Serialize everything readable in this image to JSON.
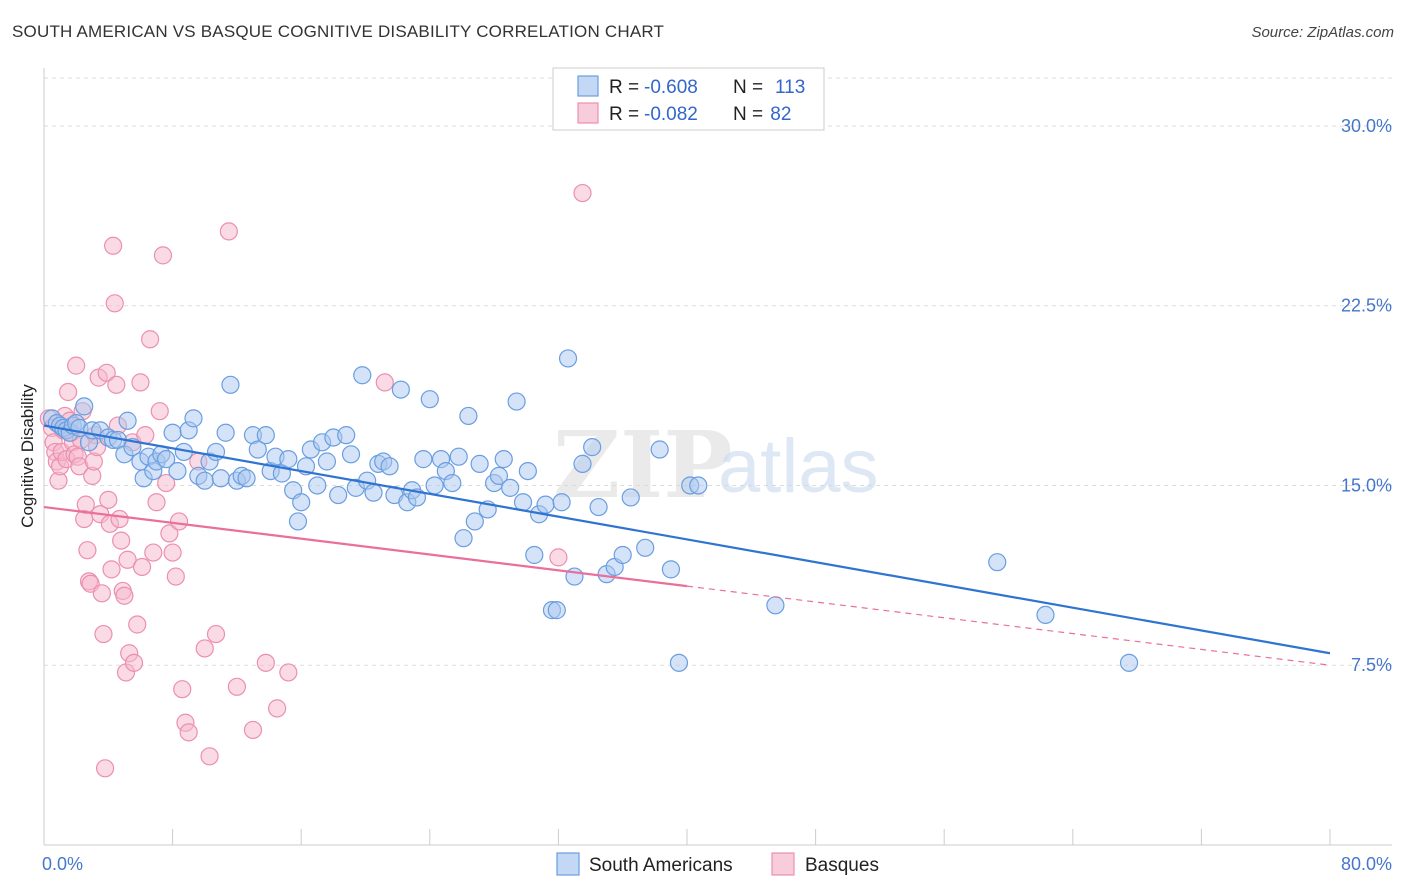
{
  "header": {
    "title": "SOUTH AMERICAN VS BASQUE COGNITIVE DISABILITY CORRELATION CHART",
    "source": "Source: ZipAtlas.com"
  },
  "watermark": {
    "zip": "ZIP",
    "atlas": "atlas"
  },
  "colors": {
    "blue_fill": "#a9c8f0",
    "blue_stroke": "#6a9ee0",
    "blue_line": "#2f74d0",
    "pink_fill": "#f5b8cc",
    "pink_stroke": "#ec8fae",
    "pink_line": "#e8709a",
    "grid": "#dddddd",
    "tick_text": "#4477cc"
  },
  "legend": {
    "rows": [
      {
        "r_label": "R = ",
        "r_value": "-0.608",
        "n_label": "N = ",
        "n_value": "113"
      },
      {
        "r_label": "R = ",
        "r_value": "-0.082",
        "n_label": "N = ",
        "n_value": " 82"
      }
    ],
    "bottom": [
      "South Americans",
      "Basques"
    ]
  },
  "chart_data": {
    "type": "scatter",
    "title": "SOUTH AMERICAN VS BASQUE COGNITIVE DISABILITY CORRELATION CHART",
    "xlabel": "",
    "ylabel": "Cognitive Disability",
    "xlim": [
      0,
      80
    ],
    "ylim": [
      0,
      32
    ],
    "x_tick_labels": [
      "0.0%",
      "80.0%"
    ],
    "y_ticks": [
      7.5,
      15.0,
      22.5,
      30.0
    ],
    "y_tick_labels": [
      "7.5%",
      "15.0%",
      "22.5%",
      "30.0%"
    ],
    "grid": true,
    "legend_position": "top-center",
    "series": [
      {
        "name": "South Americans",
        "r": -0.608,
        "n": 113,
        "trend": {
          "x0": 0,
          "y0": 17.5,
          "x1": 80,
          "y1": 8.0,
          "solid_until": 80
        },
        "points": [
          [
            0.5,
            17.8
          ],
          [
            0.8,
            17.6
          ],
          [
            1.0,
            17.5
          ],
          [
            1.2,
            17.4
          ],
          [
            1.4,
            17.3
          ],
          [
            1.6,
            17.2
          ],
          [
            1.8,
            17.5
          ],
          [
            2.0,
            17.6
          ],
          [
            2.2,
            17.4
          ],
          [
            2.5,
            18.3
          ],
          [
            2.8,
            16.8
          ],
          [
            3.0,
            17.3
          ],
          [
            3.5,
            17.3
          ],
          [
            4.0,
            17.0
          ],
          [
            4.3,
            16.9
          ],
          [
            4.6,
            16.9
          ],
          [
            5.0,
            16.3
          ],
          [
            5.2,
            17.7
          ],
          [
            5.5,
            16.6
          ],
          [
            6.0,
            16.0
          ],
          [
            6.2,
            15.3
          ],
          [
            6.5,
            16.2
          ],
          [
            6.8,
            15.6
          ],
          [
            7.0,
            16.0
          ],
          [
            7.3,
            16.3
          ],
          [
            7.6,
            16.1
          ],
          [
            8.0,
            17.2
          ],
          [
            8.3,
            15.6
          ],
          [
            8.7,
            16.4
          ],
          [
            9.0,
            17.3
          ],
          [
            9.3,
            17.8
          ],
          [
            9.6,
            15.4
          ],
          [
            10.0,
            15.2
          ],
          [
            10.3,
            16.0
          ],
          [
            10.7,
            16.4
          ],
          [
            11.0,
            15.3
          ],
          [
            11.3,
            17.2
          ],
          [
            11.6,
            19.2
          ],
          [
            12.0,
            15.2
          ],
          [
            12.3,
            15.4
          ],
          [
            12.6,
            15.3
          ],
          [
            13.0,
            17.1
          ],
          [
            13.3,
            16.5
          ],
          [
            13.8,
            17.1
          ],
          [
            14.1,
            15.6
          ],
          [
            14.4,
            16.2
          ],
          [
            14.8,
            15.5
          ],
          [
            15.2,
            16.1
          ],
          [
            15.5,
            14.8
          ],
          [
            15.8,
            13.5
          ],
          [
            16.0,
            14.3
          ],
          [
            16.3,
            15.8
          ],
          [
            16.6,
            16.5
          ],
          [
            17.0,
            15.0
          ],
          [
            17.3,
            16.8
          ],
          [
            17.6,
            16.0
          ],
          [
            18.0,
            17.0
          ],
          [
            18.3,
            14.6
          ],
          [
            18.8,
            17.1
          ],
          [
            19.1,
            16.3
          ],
          [
            19.4,
            14.9
          ],
          [
            19.8,
            19.6
          ],
          [
            20.1,
            15.2
          ],
          [
            20.5,
            14.7
          ],
          [
            20.8,
            15.9
          ],
          [
            21.1,
            16.0
          ],
          [
            21.5,
            15.8
          ],
          [
            21.8,
            14.6
          ],
          [
            22.2,
            19.0
          ],
          [
            22.6,
            14.3
          ],
          [
            22.9,
            14.8
          ],
          [
            23.2,
            14.5
          ],
          [
            23.6,
            16.1
          ],
          [
            24.0,
            18.6
          ],
          [
            24.3,
            15.0
          ],
          [
            24.7,
            16.1
          ],
          [
            25.0,
            15.6
          ],
          [
            25.4,
            15.1
          ],
          [
            25.8,
            16.2
          ],
          [
            26.1,
            12.8
          ],
          [
            26.4,
            17.9
          ],
          [
            26.8,
            13.5
          ],
          [
            27.1,
            15.9
          ],
          [
            27.6,
            14.0
          ],
          [
            28.0,
            15.1
          ],
          [
            28.3,
            15.4
          ],
          [
            28.6,
            16.1
          ],
          [
            29.0,
            14.9
          ],
          [
            29.4,
            18.5
          ],
          [
            29.8,
            14.3
          ],
          [
            30.1,
            15.6
          ],
          [
            30.5,
            12.1
          ],
          [
            30.8,
            13.8
          ],
          [
            31.2,
            14.2
          ],
          [
            31.6,
            9.8
          ],
          [
            31.9,
            9.8
          ],
          [
            32.2,
            14.3
          ],
          [
            32.6,
            20.3
          ],
          [
            33.0,
            11.2
          ],
          [
            33.5,
            15.9
          ],
          [
            34.1,
            16.6
          ],
          [
            34.5,
            14.1
          ],
          [
            35.0,
            11.3
          ],
          [
            35.5,
            11.6
          ],
          [
            36.0,
            12.1
          ],
          [
            36.5,
            14.5
          ],
          [
            37.4,
            12.4
          ],
          [
            38.3,
            16.5
          ],
          [
            39.0,
            11.5
          ],
          [
            39.5,
            7.6
          ],
          [
            40.2,
            15.0
          ],
          [
            40.7,
            15.0
          ],
          [
            45.5,
            10.0
          ],
          [
            59.3,
            11.8
          ],
          [
            62.3,
            9.6
          ],
          [
            67.5,
            7.6
          ]
        ]
      },
      {
        "name": "Basques",
        "r": -0.082,
        "n": 82,
        "trend": {
          "x0": 0,
          "y0": 14.1,
          "x1": 80,
          "y1": 7.5,
          "solid_until": 40
        },
        "points": [
          [
            0.3,
            17.8
          ],
          [
            0.5,
            17.4
          ],
          [
            0.6,
            16.8
          ],
          [
            0.7,
            16.4
          ],
          [
            0.8,
            16.0
          ],
          [
            0.9,
            15.2
          ],
          [
            1.0,
            15.8
          ],
          [
            1.1,
            16.4
          ],
          [
            1.2,
            17.3
          ],
          [
            1.3,
            17.9
          ],
          [
            1.4,
            16.1
          ],
          [
            1.5,
            18.9
          ],
          [
            1.6,
            17.7
          ],
          [
            1.7,
            17.2
          ],
          [
            1.8,
            16.8
          ],
          [
            1.9,
            16.3
          ],
          [
            2.0,
            20.0
          ],
          [
            2.1,
            16.2
          ],
          [
            2.2,
            15.8
          ],
          [
            2.3,
            16.9
          ],
          [
            2.4,
            18.1
          ],
          [
            2.5,
            13.6
          ],
          [
            2.6,
            14.2
          ],
          [
            2.7,
            12.3
          ],
          [
            2.8,
            11.0
          ],
          [
            2.9,
            10.9
          ],
          [
            3.0,
            15.4
          ],
          [
            3.1,
            16.0
          ],
          [
            3.2,
            17.1
          ],
          [
            3.3,
            16.6
          ],
          [
            3.4,
            19.5
          ],
          [
            3.5,
            13.8
          ],
          [
            3.6,
            10.5
          ],
          [
            3.7,
            8.8
          ],
          [
            3.8,
            3.2
          ],
          [
            3.9,
            19.7
          ],
          [
            4.0,
            14.4
          ],
          [
            4.1,
            13.4
          ],
          [
            4.2,
            11.5
          ],
          [
            4.3,
            25.0
          ],
          [
            4.4,
            22.6
          ],
          [
            4.5,
            19.2
          ],
          [
            4.6,
            17.5
          ],
          [
            4.7,
            13.6
          ],
          [
            4.8,
            12.7
          ],
          [
            4.9,
            10.6
          ],
          [
            5.0,
            10.4
          ],
          [
            5.1,
            7.2
          ],
          [
            5.2,
            11.9
          ],
          [
            5.3,
            8.0
          ],
          [
            5.5,
            16.8
          ],
          [
            5.6,
            7.6
          ],
          [
            5.8,
            9.2
          ],
          [
            6.0,
            19.3
          ],
          [
            6.1,
            11.6
          ],
          [
            6.3,
            17.1
          ],
          [
            6.6,
            21.1
          ],
          [
            6.8,
            12.2
          ],
          [
            7.0,
            14.3
          ],
          [
            7.2,
            18.1
          ],
          [
            7.4,
            24.6
          ],
          [
            7.6,
            15.1
          ],
          [
            7.8,
            13.0
          ],
          [
            8.0,
            12.2
          ],
          [
            8.2,
            11.2
          ],
          [
            8.4,
            13.5
          ],
          [
            8.6,
            6.5
          ],
          [
            8.8,
            5.1
          ],
          [
            9.0,
            4.7
          ],
          [
            9.6,
            16.0
          ],
          [
            10.0,
            8.2
          ],
          [
            10.3,
            3.7
          ],
          [
            10.7,
            8.8
          ],
          [
            11.5,
            25.6
          ],
          [
            12.0,
            6.6
          ],
          [
            13.0,
            4.8
          ],
          [
            13.8,
            7.6
          ],
          [
            14.5,
            5.7
          ],
          [
            15.2,
            7.2
          ],
          [
            21.2,
            19.3
          ],
          [
            32.0,
            12.0
          ],
          [
            33.5,
            27.2
          ]
        ]
      }
    ]
  }
}
